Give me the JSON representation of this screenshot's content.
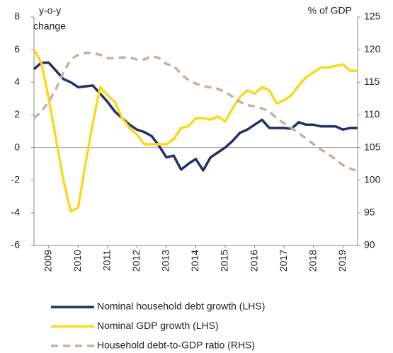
{
  "chart_data": {
    "type": "line",
    "y_label": [
      "y-o-y",
      "change"
    ],
    "y2_label": "% of GDP",
    "x": [
      2008.5,
      2008.75,
      2009,
      2009.25,
      2009.5,
      2009.75,
      2010,
      2010.25,
      2010.5,
      2010.75,
      2011,
      2011.25,
      2011.5,
      2011.75,
      2012,
      2012.25,
      2012.5,
      2012.75,
      2013,
      2013.25,
      2013.5,
      2013.75,
      2014,
      2014.25,
      2014.5,
      2014.75,
      2015,
      2015.25,
      2015.5,
      2015.75,
      2016,
      2016.25,
      2016.5,
      2016.75,
      2017,
      2017.25,
      2017.5,
      2017.75,
      2018,
      2018.25,
      2018.5,
      2018.75,
      2019,
      2019.25,
      2019.5
    ],
    "xlim": [
      2008.5,
      2019.5
    ],
    "xticks": [
      2009,
      2010,
      2011,
      2012,
      2013,
      2014,
      2015,
      2016,
      2017,
      2018,
      2019
    ],
    "ylim": [
      -6,
      8
    ],
    "yticks": [
      -6,
      -4,
      -2,
      0,
      2,
      4,
      6,
      8
    ],
    "y2lim": [
      90,
      125
    ],
    "y2ticks": [
      90,
      95,
      100,
      105,
      110,
      115,
      120,
      125
    ],
    "series": [
      {
        "name": "Nominal household debt growth (LHS)",
        "color": "#262d6b",
        "dash": false,
        "values": [
          4.8,
          5.2,
          5.2,
          4.7,
          4.2,
          4.0,
          3.7,
          3.75,
          3.8,
          3.3,
          2.8,
          2.2,
          1.8,
          1.4,
          1.1,
          0.95,
          0.7,
          0.1,
          -0.6,
          -0.5,
          -1.35,
          -1.0,
          -0.7,
          -1.4,
          -0.6,
          -0.3,
          0.0,
          0.4,
          0.9,
          1.1,
          1.4,
          1.7,
          1.2,
          1.2,
          1.2,
          1.15,
          1.55,
          1.4,
          1.4,
          1.3,
          1.3,
          1.3,
          1.1,
          1.2,
          1.2
        ]
      },
      {
        "name": "Nominal GDP growth (LHS)",
        "color": "#fbd81e",
        "dash": false,
        "values": [
          6.0,
          5.2,
          3.0,
          0.5,
          -2.0,
          -3.9,
          -3.7,
          -1.0,
          1.5,
          3.7,
          3.2,
          2.8,
          1.8,
          1.2,
          0.8,
          0.2,
          0.2,
          0.2,
          0.2,
          0.5,
          1.2,
          1.3,
          1.8,
          1.8,
          1.7,
          1.9,
          1.6,
          2.4,
          3.1,
          3.5,
          3.3,
          3.7,
          3.5,
          2.7,
          2.9,
          3.2,
          3.8,
          4.3,
          4.6,
          4.9,
          4.9,
          5.0,
          5.1,
          4.7,
          4.7
        ]
      },
      {
        "name": "Household debt-to-GDP ratio (RHS)",
        "color": "#c2b2a4",
        "dash": true,
        "axis": "y2",
        "values": [
          109.5,
          110.5,
          112,
          114,
          116.5,
          118.5,
          119.2,
          119.5,
          119.5,
          119.2,
          118.7,
          118.7,
          118.8,
          118.8,
          118.5,
          118.5,
          119.0,
          118.7,
          117.8,
          117.5,
          116.3,
          115.3,
          114.8,
          114.4,
          114.2,
          114.0,
          113.5,
          112.8,
          112.0,
          111.5,
          111.3,
          111.0,
          110.5,
          109.5,
          108.7,
          108.0,
          107.2,
          106.4,
          105.5,
          104.7,
          104.0,
          103.2,
          102.3,
          101.8,
          101.4
        ]
      }
    ]
  }
}
